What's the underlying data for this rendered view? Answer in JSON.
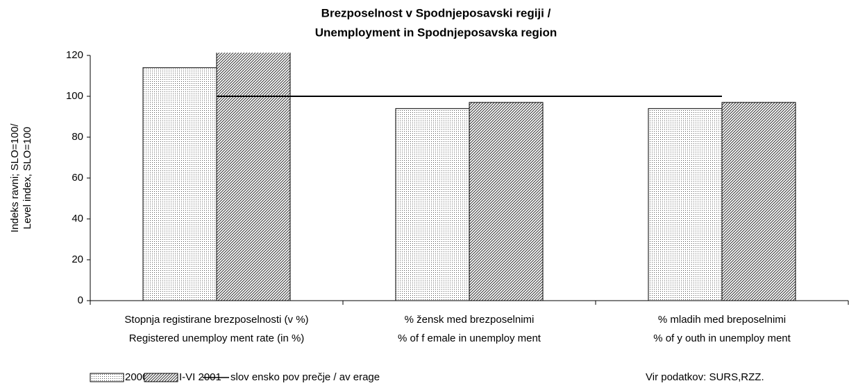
{
  "chart_data": {
    "type": "bar",
    "title": [
      "Brezposelnost v Spodnjeposavski regiji /",
      "Unemployment in Spodnjeposavska region"
    ],
    "ylabel": [
      "Indeks ravni; SLO=100/",
      "Level index, SLO=100"
    ],
    "categories": [
      [
        "Stopnja registirane brezposelnosti (v %)",
        "Registered unemploy ment rate (in %)"
      ],
      [
        "% žensk med  brezposelnimi",
        "% of f emale in unemploy ment"
      ],
      [
        "% mladih med breposelnimi",
        "% of y outh in unemploy ment"
      ]
    ],
    "series": [
      {
        "name": "2000",
        "values": [
          114,
          94,
          94
        ]
      },
      {
        "name": "I-VI 2001",
        "values": [
          125,
          97,
          97
        ]
      },
      {
        "name": "slov ensko pov prečje / av erage",
        "type": "line",
        "color": "#000000",
        "values": [
          100,
          100,
          100
        ]
      }
    ],
    "ylim": [
      0,
      120
    ],
    "yticks": [
      0,
      20,
      40,
      60,
      80,
      100,
      120
    ],
    "source": "Vir podatkov: SURS,RZZ."
  }
}
